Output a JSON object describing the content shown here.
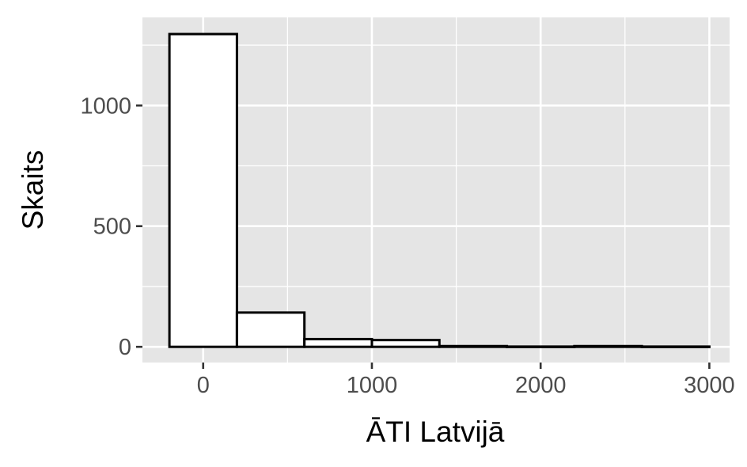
{
  "chart_data": {
    "type": "bar",
    "subtype": "histogram",
    "title": "",
    "xlabel": "ĀTI Latvijā",
    "ylabel": "Skaits",
    "bin_width": 400,
    "bins": [
      {
        "x0": -200,
        "x1": 200,
        "count": 1296
      },
      {
        "x0": 200,
        "x1": 600,
        "count": 142
      },
      {
        "x0": 600,
        "x1": 1000,
        "count": 32
      },
      {
        "x0": 1000,
        "x1": 1400,
        "count": 28
      },
      {
        "x0": 1400,
        "x1": 1800,
        "count": 3
      },
      {
        "x0": 1800,
        "x1": 2200,
        "count": 1
      },
      {
        "x0": 2200,
        "x1": 2600,
        "count": 3
      },
      {
        "x0": 2600,
        "x1": 3000,
        "count": 1
      }
    ],
    "xlim": [
      -360,
      3120
    ],
    "ylim": [
      -65,
      1365
    ],
    "x_ticks": [
      0,
      1000,
      2000,
      3000
    ],
    "x_tick_labels": [
      "0",
      "1000",
      "2000",
      "3000"
    ],
    "x_minor_ticks": [
      500,
      1500,
      2500
    ],
    "y_ticks": [
      0,
      500,
      1000
    ],
    "y_tick_labels": [
      "0",
      "500",
      "1000"
    ],
    "y_minor_ticks": [
      250,
      750,
      1250
    ],
    "grid": true,
    "legend": "none",
    "colors": {
      "panel_background": "#e5e5e5",
      "grid": "#ffffff",
      "bar_fill": "#ffffff",
      "bar_outline": "#000000",
      "tick_text": "#4d4d4d",
      "axis_title": "#000000"
    }
  }
}
